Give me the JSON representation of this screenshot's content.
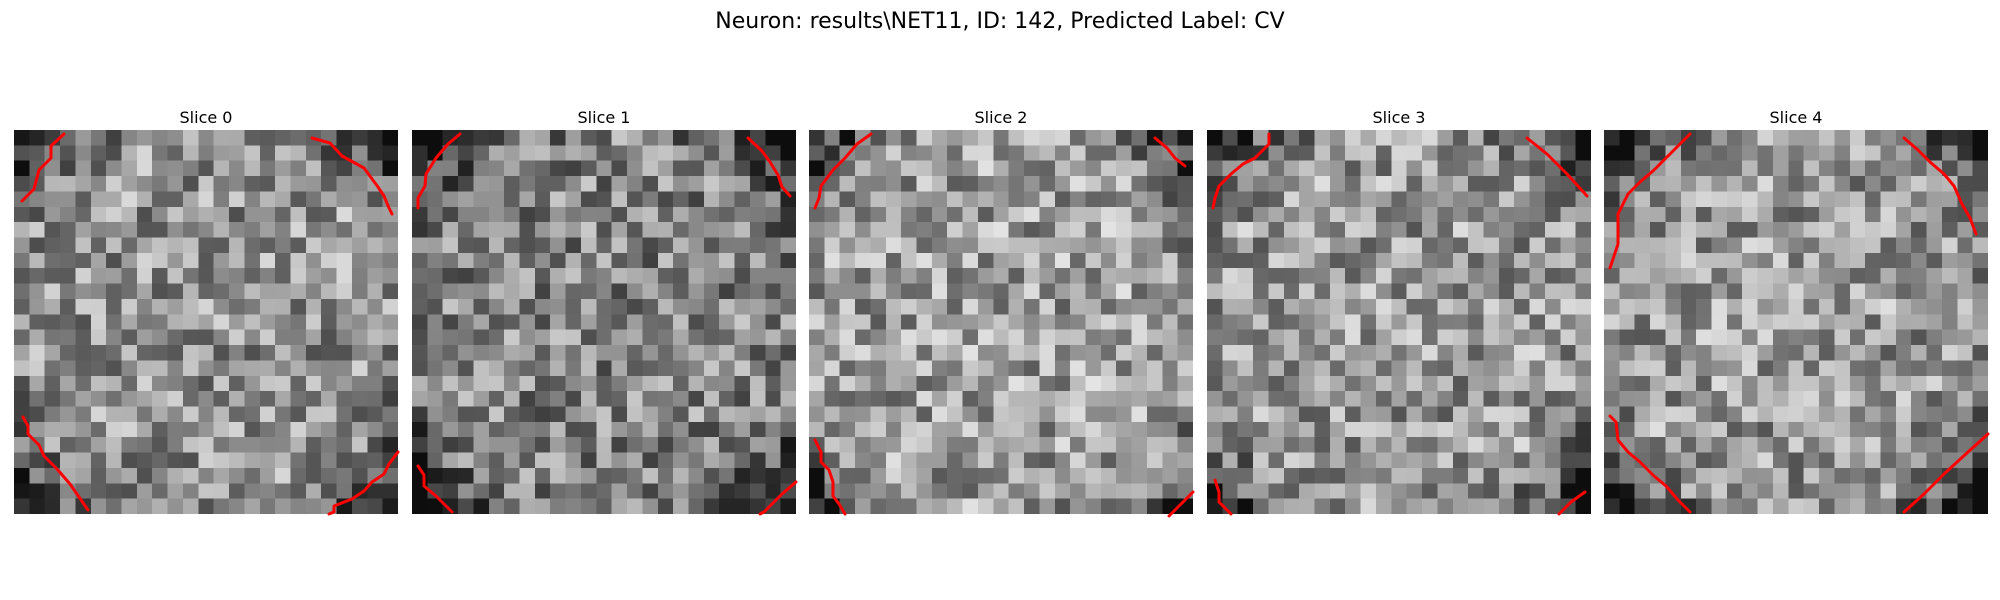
{
  "figure": {
    "title": "Neuron: results\\NET11, ID: 142, Predicted Label: CV"
  },
  "panels": [
    {
      "title": "Slice 0"
    },
    {
      "title": "Slice 1"
    },
    {
      "title": "Slice 2"
    },
    {
      "title": "Slice 3"
    },
    {
      "title": "Slice 4"
    }
  ],
  "overlay": {
    "line_color": "#ff0000",
    "colormap": "grayscale"
  }
}
